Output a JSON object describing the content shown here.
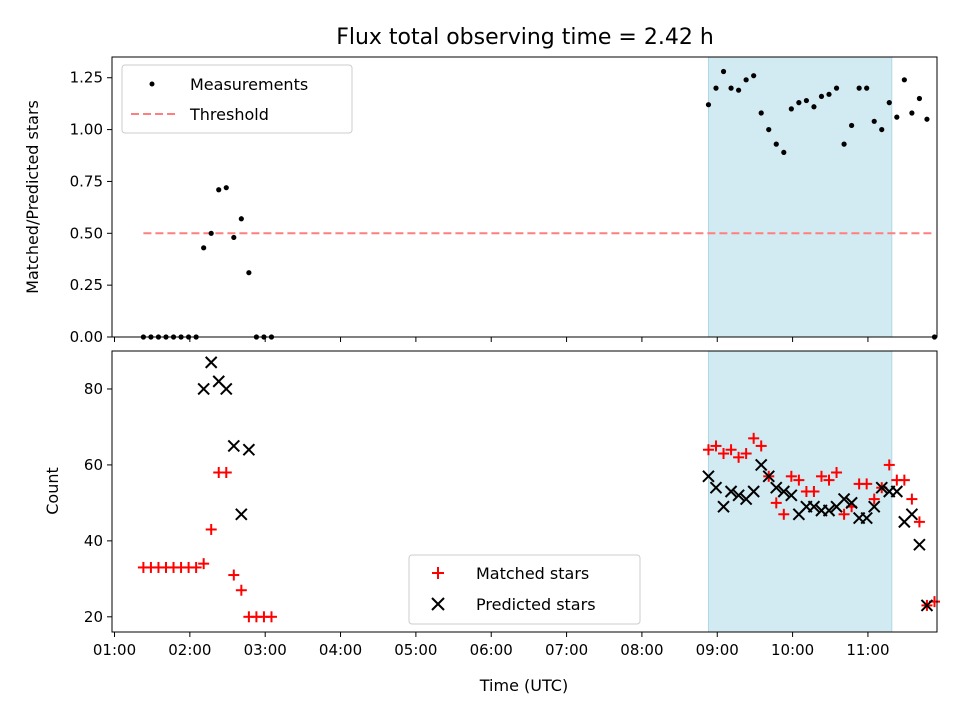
{
  "title": "Flux total observing time = 2.42 h",
  "colors": {
    "shade": "#add8e6",
    "threshold": "#ff7f7f",
    "matched": "#ff0000",
    "predicted": "#000000",
    "measurement": "#000000"
  },
  "chart_data": [
    {
      "type": "scatter",
      "panel": "top",
      "ylabel": "Matched/Predicted stars",
      "xlim": [
        "00:58",
        "11:55"
      ],
      "ylim": [
        0,
        1.35
      ],
      "yticks": [
        "0.00",
        "0.25",
        "0.50",
        "0.75",
        "1.00",
        "1.25"
      ],
      "shaded_interval": [
        "08:53",
        "11:19"
      ],
      "legend_placement": "upper left",
      "grid": false,
      "series": [
        {
          "name": "Measurements",
          "marker": "dot",
          "points": [
            [
              "01:23",
              0
            ],
            [
              "01:29",
              0
            ],
            [
              "01:35",
              0
            ],
            [
              "01:41",
              0
            ],
            [
              "01:47",
              0
            ],
            [
              "01:53",
              0
            ],
            [
              "01:59",
              0
            ],
            [
              "02:05",
              0
            ],
            [
              "02:11",
              0.43
            ],
            [
              "02:17",
              0.5
            ],
            [
              "02:23",
              0.71
            ],
            [
              "02:29",
              0.72
            ],
            [
              "02:35",
              0.48
            ],
            [
              "02:41",
              0.57
            ],
            [
              "02:47",
              0.31
            ],
            [
              "02:53",
              0
            ],
            [
              "02:59",
              0
            ],
            [
              "03:05",
              0
            ],
            [
              "08:53",
              1.12
            ],
            [
              "08:59",
              1.2
            ],
            [
              "09:05",
              1.28
            ],
            [
              "09:11",
              1.2
            ],
            [
              "09:17",
              1.19
            ],
            [
              "09:23",
              1.24
            ],
            [
              "09:29",
              1.26
            ],
            [
              "09:35",
              1.08
            ],
            [
              "09:41",
              1.0
            ],
            [
              "09:47",
              0.93
            ],
            [
              "09:53",
              0.89
            ],
            [
              "09:59",
              1.1
            ],
            [
              "10:05",
              1.13
            ],
            [
              "10:11",
              1.14
            ],
            [
              "10:17",
              1.11
            ],
            [
              "10:23",
              1.16
            ],
            [
              "10:29",
              1.17
            ],
            [
              "10:35",
              1.2
            ],
            [
              "10:41",
              0.93
            ],
            [
              "10:47",
              1.02
            ],
            [
              "10:53",
              1.2
            ],
            [
              "10:59",
              1.2
            ],
            [
              "11:05",
              1.04
            ],
            [
              "11:11",
              1.0
            ],
            [
              "11:17",
              1.13
            ],
            [
              "11:23",
              1.06
            ],
            [
              "11:29",
              1.24
            ],
            [
              "11:35",
              1.08
            ],
            [
              "11:41",
              1.15
            ],
            [
              "11:47",
              1.05
            ],
            [
              "11:53",
              0
            ]
          ]
        }
      ],
      "threshold": {
        "name": "Threshold",
        "value": 0.5,
        "x": [
          "01:23",
          "11:53"
        ]
      }
    },
    {
      "type": "scatter",
      "panel": "bottom",
      "xlabel": "Time (UTC)",
      "ylabel": "Count",
      "xlim": [
        "00:58",
        "11:55"
      ],
      "ylim": [
        16,
        90
      ],
      "yticks": [
        "20",
        "40",
        "60",
        "80"
      ],
      "xticks": [
        "01:00",
        "02:00",
        "03:00",
        "04:00",
        "05:00",
        "06:00",
        "07:00",
        "08:00",
        "09:00",
        "10:00",
        "11:00"
      ],
      "shaded_interval": [
        "08:53",
        "11:19"
      ],
      "legend_placement": "lower center",
      "grid": false,
      "series": [
        {
          "name": "Matched stars",
          "marker": "plus",
          "points": [
            [
              "01:23",
              33
            ],
            [
              "01:29",
              33
            ],
            [
              "01:35",
              33
            ],
            [
              "01:41",
              33
            ],
            [
              "01:47",
              33
            ],
            [
              "01:53",
              33
            ],
            [
              "01:59",
              33
            ],
            [
              "02:05",
              33
            ],
            [
              "02:11",
              34
            ],
            [
              "02:17",
              43
            ],
            [
              "02:23",
              58
            ],
            [
              "02:29",
              58
            ],
            [
              "02:35",
              31
            ],
            [
              "02:41",
              27
            ],
            [
              "02:47",
              20
            ],
            [
              "02:53",
              20
            ],
            [
              "02:59",
              20
            ],
            [
              "03:05",
              20
            ],
            [
              "08:53",
              64
            ],
            [
              "08:59",
              65
            ],
            [
              "09:05",
              63
            ],
            [
              "09:11",
              64
            ],
            [
              "09:17",
              62
            ],
            [
              "09:23",
              63
            ],
            [
              "09:29",
              67
            ],
            [
              "09:35",
              65
            ],
            [
              "09:41",
              57
            ],
            [
              "09:47",
              50
            ],
            [
              "09:53",
              47
            ],
            [
              "09:59",
              57
            ],
            [
              "10:05",
              56
            ],
            [
              "10:11",
              53
            ],
            [
              "10:17",
              53
            ],
            [
              "10:23",
              57
            ],
            [
              "10:29",
              56
            ],
            [
              "10:35",
              58
            ],
            [
              "10:41",
              47
            ],
            [
              "10:47",
              49
            ],
            [
              "10:53",
              55
            ],
            [
              "10:59",
              55
            ],
            [
              "11:05",
              51
            ],
            [
              "11:11",
              54
            ],
            [
              "11:17",
              60
            ],
            [
              "11:23",
              56
            ],
            [
              "11:29",
              56
            ],
            [
              "11:35",
              51
            ],
            [
              "11:41",
              45
            ],
            [
              "11:47",
              23
            ],
            [
              "11:53",
              24
            ]
          ]
        },
        {
          "name": "Predicted stars",
          "marker": "x",
          "points": [
            [
              "02:11",
              80
            ],
            [
              "02:17",
              87
            ],
            [
              "02:23",
              82
            ],
            [
              "02:29",
              80
            ],
            [
              "02:35",
              65
            ],
            [
              "02:41",
              47
            ],
            [
              "02:47",
              64
            ],
            [
              "08:53",
              57
            ],
            [
              "08:59",
              54
            ],
            [
              "09:05",
              49
            ],
            [
              "09:11",
              53
            ],
            [
              "09:17",
              52
            ],
            [
              "09:23",
              51
            ],
            [
              "09:29",
              53
            ],
            [
              "09:35",
              60
            ],
            [
              "09:41",
              57
            ],
            [
              "09:47",
              54
            ],
            [
              "09:53",
              53
            ],
            [
              "09:59",
              52
            ],
            [
              "10:05",
              47
            ],
            [
              "10:11",
              49
            ],
            [
              "10:17",
              49
            ],
            [
              "10:23",
              48
            ],
            [
              "10:29",
              48
            ],
            [
              "10:35",
              49
            ],
            [
              "10:41",
              51
            ],
            [
              "10:47",
              50
            ],
            [
              "10:53",
              46
            ],
            [
              "10:59",
              46
            ],
            [
              "11:05",
              49
            ],
            [
              "11:11",
              54
            ],
            [
              "11:17",
              53
            ],
            [
              "11:23",
              53
            ],
            [
              "11:29",
              45
            ],
            [
              "11:35",
              47
            ],
            [
              "11:41",
              39
            ],
            [
              "11:47",
              23
            ]
          ]
        }
      ]
    }
  ]
}
